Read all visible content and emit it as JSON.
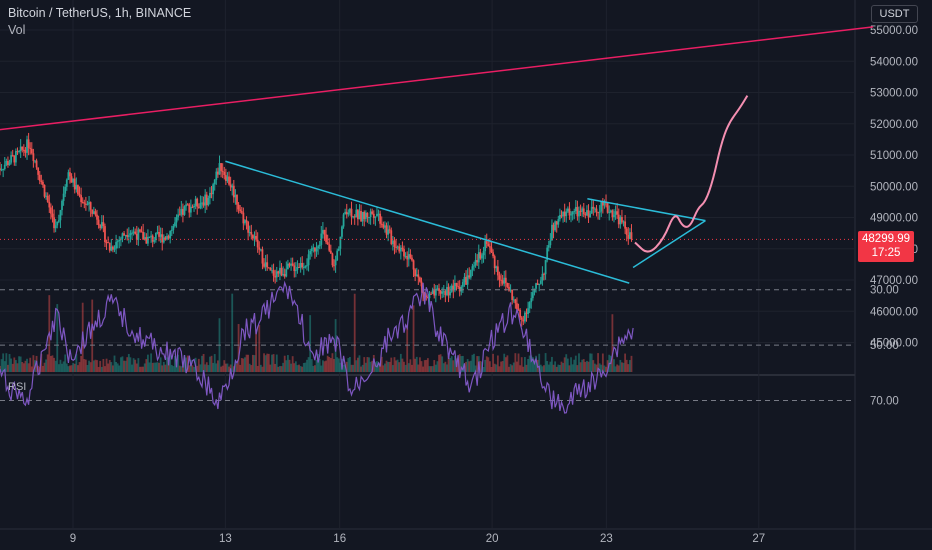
{
  "header": {
    "title": "Bitcoin / TetherUS, 1h, BINANCE",
    "volume_label": "Vol"
  },
  "currency": "USDT",
  "last_price": {
    "price": "48299.99",
    "countdown": "17:25"
  },
  "colors": {
    "background": "#131722",
    "up_candle": "#26a69a",
    "down_candle": "#ef5350",
    "trend_line_pink": "#e91e63",
    "triangle_lines": "#2bbcd8",
    "projection_curve": "#f48fb1",
    "rsi_line": "#7e57c2",
    "rsi_band": "#7e57c2",
    "price_badge": "#f23645"
  },
  "chart_data": [
    {
      "type": "candlestick",
      "title": "Bitcoin / TetherUS, 1h, BINANCE",
      "x_tick_labels": [
        "9",
        "13",
        "16",
        "20",
        "23",
        "27"
      ],
      "y_ticks": [
        "45000.00",
        "46000.00",
        "47000.00",
        "48000.00",
        "49000.00",
        "50000.00",
        "51000.00",
        "52000.00",
        "53000.00",
        "54000.00",
        "55000.00"
      ],
      "ylim": [
        44500,
        55500
      ],
      "waypoints_day_price": [
        [
          7.0,
          50500
        ],
        [
          7.6,
          51000
        ],
        [
          7.9,
          51400
        ],
        [
          8.2,
          50200
        ],
        [
          8.6,
          48600
        ],
        [
          8.9,
          50500
        ],
        [
          9.2,
          49700
        ],
        [
          9.7,
          49000
        ],
        [
          10.0,
          48000
        ],
        [
          10.5,
          48600
        ],
        [
          11.0,
          48300
        ],
        [
          11.5,
          48400
        ],
        [
          12.0,
          49300
        ],
        [
          12.6,
          49600
        ],
        [
          12.9,
          50700
        ],
        [
          13.2,
          50000
        ],
        [
          13.5,
          49000
        ],
        [
          13.8,
          48300
        ],
        [
          14.2,
          47200
        ],
        [
          14.6,
          47300
        ],
        [
          15.2,
          47600
        ],
        [
          15.6,
          48500
        ],
        [
          15.9,
          47400
        ],
        [
          16.2,
          49300
        ],
        [
          16.6,
          49000
        ],
        [
          17.0,
          49200
        ],
        [
          17.4,
          48300
        ],
        [
          17.9,
          47700
        ],
        [
          18.3,
          46400
        ],
        [
          18.7,
          46600
        ],
        [
          19.2,
          46800
        ],
        [
          19.5,
          47200
        ],
        [
          19.9,
          48300
        ],
        [
          20.2,
          47200
        ],
        [
          20.5,
          46700
        ],
        [
          20.8,
          45700
        ],
        [
          21.0,
          46200
        ],
        [
          21.4,
          47300
        ],
        [
          21.6,
          48600
        ],
        [
          22.0,
          49200
        ],
        [
          22.5,
          49100
        ],
        [
          22.9,
          49400
        ],
        [
          23.3,
          49100
        ],
        [
          23.7,
          48300
        ]
      ],
      "trend_line": {
        "start": [
          7.0,
          51800
        ],
        "end": [
          30.0,
          55100
        ]
      },
      "descending_line": {
        "start": [
          13.0,
          50800
        ],
        "end": [
          23.6,
          46900
        ]
      },
      "triangle_upper": {
        "start": [
          22.5,
          49600
        ],
        "end": [
          25.6,
          48900
        ]
      },
      "triangle_lower": {
        "start": [
          23.7,
          47400
        ],
        "end": [
          25.6,
          48900
        ]
      },
      "projection_curve": [
        [
          23.75,
          48200
        ],
        [
          24.1,
          47800
        ],
        [
          24.5,
          48300
        ],
        [
          24.8,
          49200
        ],
        [
          25.0,
          48700
        ],
        [
          25.2,
          48700
        ],
        [
          25.4,
          49300
        ],
        [
          25.6,
          49500
        ],
        [
          25.8,
          50200
        ],
        [
          26.0,
          51300
        ],
        [
          26.2,
          52000
        ],
        [
          26.5,
          52500
        ],
        [
          26.7,
          52900
        ]
      ]
    },
    {
      "type": "line",
      "title": "RSI",
      "y_ticks": [
        "70.00",
        "50.00",
        "30.00"
      ],
      "ylim": [
        27,
        75
      ],
      "band": [
        30,
        70
      ],
      "series_waypoints_day_value": [
        [
          7.0,
          60
        ],
        [
          7.4,
          66
        ],
        [
          7.8,
          70
        ],
        [
          8.0,
          62
        ],
        [
          8.3,
          48
        ],
        [
          8.6,
          38
        ],
        [
          8.9,
          54
        ],
        [
          9.2,
          50
        ],
        [
          9.6,
          42
        ],
        [
          10.0,
          35
        ],
        [
          10.3,
          40
        ],
        [
          10.8,
          48
        ],
        [
          11.3,
          52
        ],
        [
          11.8,
          55
        ],
        [
          12.4,
          62
        ],
        [
          12.8,
          72
        ],
        [
          13.2,
          58
        ],
        [
          13.5,
          44
        ],
        [
          13.8,
          42
        ],
        [
          14.2,
          35
        ],
        [
          14.6,
          28
        ],
        [
          15.0,
          42
        ],
        [
          15.3,
          58
        ],
        [
          15.6,
          48
        ],
        [
          16.0,
          52
        ],
        [
          16.3,
          68
        ],
        [
          16.6,
          62
        ],
        [
          17.0,
          55
        ],
        [
          17.4,
          45
        ],
        [
          17.8,
          40
        ],
        [
          18.2,
          30
        ],
        [
          18.5,
          42
        ],
        [
          18.9,
          52
        ],
        [
          19.2,
          60
        ],
        [
          19.5,
          64
        ],
        [
          19.8,
          55
        ],
        [
          20.1,
          45
        ],
        [
          20.5,
          38
        ],
        [
          20.8,
          42
        ],
        [
          21.1,
          55
        ],
        [
          21.5,
          68
        ],
        [
          21.9,
          74
        ],
        [
          22.3,
          66
        ],
        [
          22.7,
          64
        ],
        [
          23.1,
          55
        ],
        [
          23.4,
          48
        ],
        [
          23.7,
          45
        ]
      ]
    }
  ]
}
